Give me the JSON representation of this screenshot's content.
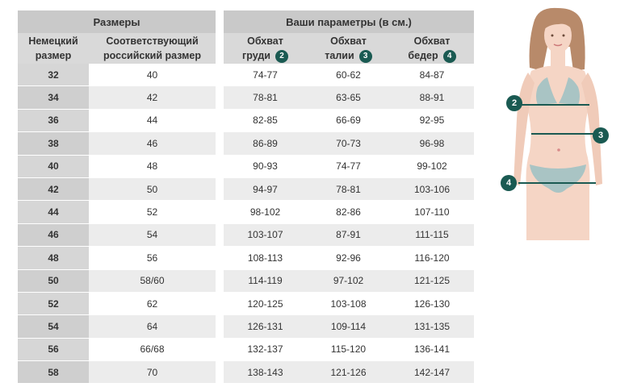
{
  "sizes_table": {
    "title": "Размеры",
    "col_german_line1": "Немецкий",
    "col_german_line2": "размер",
    "col_russian_line1": "Соответствующий",
    "col_russian_line2": "российский размер",
    "rows": [
      {
        "de": "32",
        "ru": "40"
      },
      {
        "de": "34",
        "ru": "42"
      },
      {
        "de": "36",
        "ru": "44"
      },
      {
        "de": "38",
        "ru": "46"
      },
      {
        "de": "40",
        "ru": "48"
      },
      {
        "de": "42",
        "ru": "50"
      },
      {
        "de": "44",
        "ru": "52"
      },
      {
        "de": "46",
        "ru": "54"
      },
      {
        "de": "48",
        "ru": "56"
      },
      {
        "de": "50",
        "ru": "58/60"
      },
      {
        "de": "52",
        "ru": "62"
      },
      {
        "de": "54",
        "ru": "64"
      },
      {
        "de": "56",
        "ru": "66/68"
      },
      {
        "de": "58",
        "ru": "70"
      }
    ]
  },
  "params_table": {
    "title": "Ваши параметры (в см.)",
    "col_chest_line1": "Обхват",
    "col_chest_line2": "груди",
    "col_chest_badge": "2",
    "col_waist_line1": "Обхват",
    "col_waist_line2": "талии",
    "col_waist_badge": "3",
    "col_hips_line1": "Обхват",
    "col_hips_line2": "бедер",
    "col_hips_badge": "4",
    "rows": [
      {
        "chest": "74-77",
        "waist": "60-62",
        "hips": "84-87"
      },
      {
        "chest": "78-81",
        "waist": "63-65",
        "hips": "88-91"
      },
      {
        "chest": "82-85",
        "waist": "66-69",
        "hips": "92-95"
      },
      {
        "chest": "86-89",
        "waist": "70-73",
        "hips": "96-98"
      },
      {
        "chest": "90-93",
        "waist": "74-77",
        "hips": "99-102"
      },
      {
        "chest": "94-97",
        "waist": "78-81",
        "hips": "103-106"
      },
      {
        "chest": "98-102",
        "waist": "82-86",
        "hips": "107-110"
      },
      {
        "chest": "103-107",
        "waist": "87-91",
        "hips": "111-115"
      },
      {
        "chest": "108-113",
        "waist": "92-96",
        "hips": "116-120"
      },
      {
        "chest": "114-119",
        "waist": "97-102",
        "hips": "121-125"
      },
      {
        "chest": "120-125",
        "waist": "103-108",
        "hips": "126-130"
      },
      {
        "chest": "126-131",
        "waist": "109-114",
        "hips": "131-135"
      },
      {
        "chest": "132-137",
        "waist": "115-120",
        "hips": "136-141"
      },
      {
        "chest": "138-143",
        "waist": "121-126",
        "hips": "142-147"
      }
    ]
  },
  "figure": {
    "badge_chest": "2",
    "badge_waist": "3",
    "badge_hips": "4"
  },
  "colors": {
    "badge": "#1a5a52",
    "header_dark": "#c9c9c9",
    "header_light": "#d9d9d9",
    "row_alt": "#ececec",
    "skin": "#f5d5c5",
    "hair": "#b88a6a",
    "bikini": "#a9c4c4"
  }
}
